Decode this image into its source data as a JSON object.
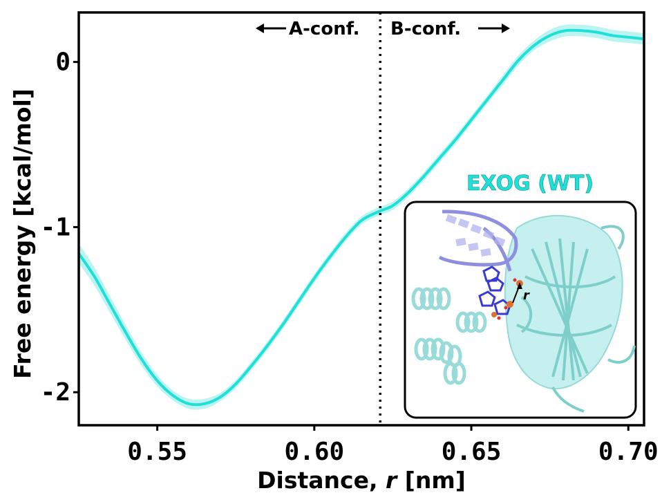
{
  "chart_data": {
    "type": "line",
    "xlabel_prefix": "Distance, ",
    "xlabel_var": "r",
    "xlabel_suffix": " [nm]",
    "ylabel": "Free energy [kcal/mol]",
    "xlim": [
      0.525,
      0.705
    ],
    "ylim": [
      -2.2,
      0.3
    ],
    "x_ticks": [
      "0.55",
      "0.60",
      "0.65",
      "0.70"
    ],
    "x_tick_values": [
      0.55,
      0.6,
      0.65,
      0.7
    ],
    "y_ticks": [
      "-2",
      "-1",
      "0"
    ],
    "y_tick_values": [
      -2,
      -1,
      0
    ],
    "divider_x": 0.621,
    "annotation_left": "A-conf.",
    "annotation_right": "B-conf.",
    "inset_title": "EXOG (WT)",
    "inset_label": "r",
    "line_color": "#1ee0d6",
    "band_color": "#9ff0ec",
    "series": [
      {
        "x": [
          0.525,
          0.53,
          0.535,
          0.54,
          0.545,
          0.55,
          0.555,
          0.56,
          0.565,
          0.57,
          0.575,
          0.58,
          0.585,
          0.59,
          0.595,
          0.6,
          0.605,
          0.61,
          0.615,
          0.62,
          0.625,
          0.63,
          0.635,
          0.64,
          0.645,
          0.65,
          0.655,
          0.66,
          0.665,
          0.67,
          0.675,
          0.68,
          0.685,
          0.69,
          0.695,
          0.7,
          0.705
        ],
        "y": [
          -1.16,
          -1.3,
          -1.47,
          -1.64,
          -1.8,
          -1.93,
          -2.02,
          -2.07,
          -2.07,
          -2.03,
          -1.95,
          -1.84,
          -1.72,
          -1.59,
          -1.45,
          -1.31,
          -1.18,
          -1.06,
          -0.96,
          -0.91,
          -0.87,
          -0.79,
          -0.69,
          -0.58,
          -0.47,
          -0.35,
          -0.23,
          -0.11,
          0.01,
          0.1,
          0.16,
          0.19,
          0.19,
          0.18,
          0.16,
          0.15,
          0.14
        ],
        "err": [
          0.06,
          0.055,
          0.05,
          0.045,
          0.04,
          0.035,
          0.03,
          0.03,
          0.03,
          0.025,
          0.025,
          0.025,
          0.025,
          0.025,
          0.025,
          0.025,
          0.025,
          0.025,
          0.025,
          0.025,
          0.025,
          0.025,
          0.025,
          0.025,
          0.025,
          0.025,
          0.025,
          0.03,
          0.03,
          0.03,
          0.035,
          0.035,
          0.035,
          0.035,
          0.035,
          0.035,
          0.035
        ]
      }
    ]
  }
}
